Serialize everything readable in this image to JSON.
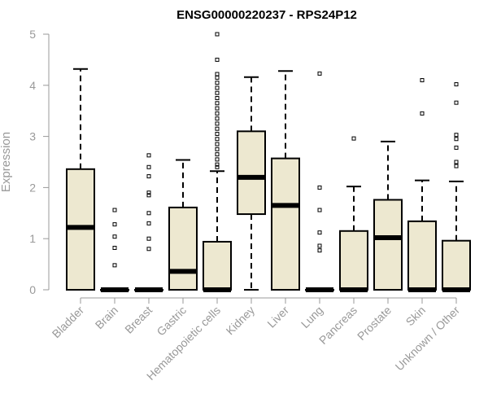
{
  "chart_data": {
    "type": "boxplot",
    "title": "ENSG00000220237 - RPS24P12",
    "xlabel": "",
    "ylabel": "Expression",
    "ylim": [
      0,
      5
    ],
    "yticks": [
      0,
      1,
      2,
      3,
      4,
      5
    ],
    "box_color": "#ede8d0",
    "categories": [
      "Bladder",
      "Brain",
      "Breast",
      "Gastric",
      "Hematopoietic cells",
      "Kidney",
      "Liver",
      "Lung",
      "Pancreas",
      "Prostate",
      "Skin",
      "Unknown / Other"
    ],
    "boxes": [
      {
        "q1": 0,
        "median": 1.22,
        "q3": 2.36,
        "whisker_low": 0,
        "whisker_high": 4.32,
        "outliers": []
      },
      {
        "q1": 0,
        "median": 0,
        "q3": 0,
        "whisker_low": 0,
        "whisker_high": 0,
        "outliers": [
          0.48,
          0.82,
          1.04,
          1.28,
          1.56
        ]
      },
      {
        "q1": 0,
        "median": 0,
        "q3": 0,
        "whisker_low": 0,
        "whisker_high": 0,
        "outliers": [
          0.8,
          1.0,
          1.3,
          1.5,
          1.85,
          1.9,
          2.22,
          2.4,
          2.63
        ]
      },
      {
        "q1": 0,
        "median": 0.36,
        "q3": 1.61,
        "whisker_low": 0,
        "whisker_high": 2.54,
        "outliers": []
      },
      {
        "q1": 0,
        "median": 0,
        "q3": 0.94,
        "whisker_low": 0,
        "whisker_high": 2.32,
        "outliers": [
          2.4,
          2.45,
          2.55,
          2.65,
          2.75,
          2.85,
          2.95,
          3.05,
          3.15,
          3.25,
          3.35,
          3.45,
          3.55,
          3.65,
          3.75,
          3.85,
          3.95,
          4.05,
          4.15,
          4.22,
          4.5,
          5.0
        ]
      },
      {
        "q1": 1.48,
        "median": 2.2,
        "q3": 3.1,
        "whisker_low": 0,
        "whisker_high": 4.16,
        "outliers": []
      },
      {
        "q1": 0,
        "median": 1.65,
        "q3": 2.57,
        "whisker_low": 0,
        "whisker_high": 4.28,
        "outliers": []
      },
      {
        "q1": 0,
        "median": 0,
        "q3": 0,
        "whisker_low": 0,
        "whisker_high": 0,
        "outliers": [
          0.77,
          0.86,
          1.12,
          1.56,
          2.0,
          4.23
        ]
      },
      {
        "q1": 0,
        "median": 0,
        "q3": 1.15,
        "whisker_low": 0,
        "whisker_high": 2.02,
        "outliers": [
          2.96
        ]
      },
      {
        "q1": 0,
        "median": 1.02,
        "q3": 1.76,
        "whisker_low": 0,
        "whisker_high": 2.9,
        "outliers": []
      },
      {
        "q1": 0,
        "median": 0,
        "q3": 1.34,
        "whisker_low": 0,
        "whisker_high": 2.14,
        "outliers": [
          3.45,
          4.1
        ]
      },
      {
        "q1": 0,
        "median": 0,
        "q3": 0.96,
        "whisker_low": 0,
        "whisker_high": 2.12,
        "outliers": [
          2.42,
          2.5,
          2.78,
          2.95,
          3.03,
          3.66,
          4.02
        ]
      }
    ]
  }
}
